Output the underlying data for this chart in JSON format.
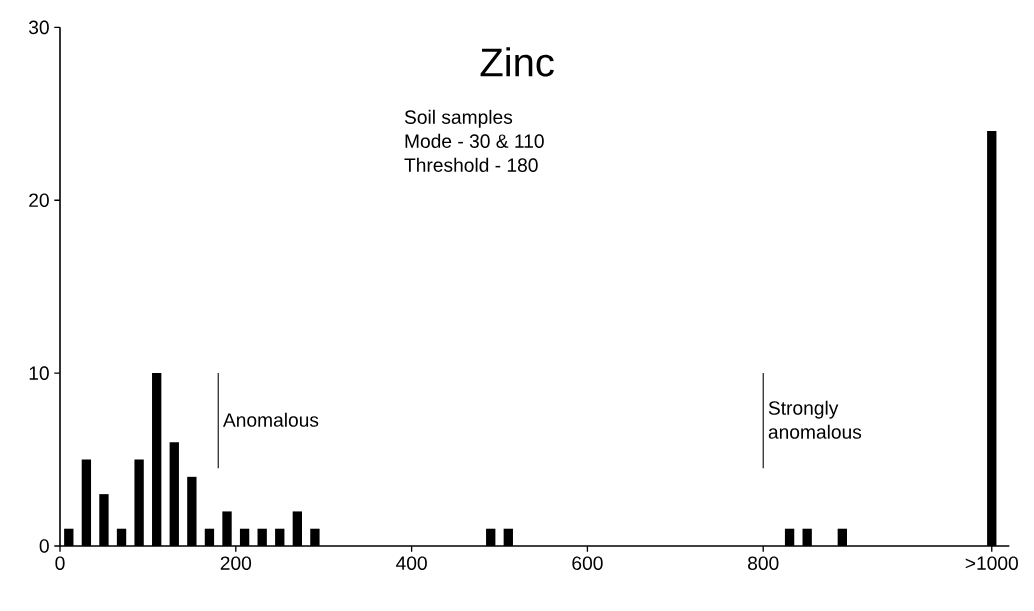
{
  "chart_data": {
    "type": "bar",
    "title": "Zinc",
    "annotations": [
      "Soil samples",
      "Mode - 30 & 110",
      "Threshold - 180"
    ],
    "x": [
      10,
      30,
      50,
      70,
      90,
      110,
      130,
      150,
      170,
      190,
      210,
      230,
      250,
      270,
      290,
      490,
      510,
      830,
      850,
      890,
      1060
    ],
    "values": [
      1,
      5,
      3,
      1,
      5,
      10,
      6,
      4,
      1,
      2,
      1,
      1,
      1,
      2,
      1,
      1,
      1,
      1,
      1,
      1,
      24
    ],
    "color": "#000000",
    "xlim": [
      0,
      1080
    ],
    "ylim": [
      0,
      30
    ],
    "xticks": [
      0,
      200,
      400,
      600,
      800,
      {
        "value": 1060,
        "label": ">1000"
      }
    ],
    "yticks": [
      0,
      10,
      20,
      30
    ],
    "ref_lines": [
      {
        "axis": "x",
        "value": 180,
        "label": "Anomalous"
      },
      {
        "axis": "x",
        "value": 800,
        "label": "Strongly anomalous"
      }
    ],
    "grid": false
  }
}
